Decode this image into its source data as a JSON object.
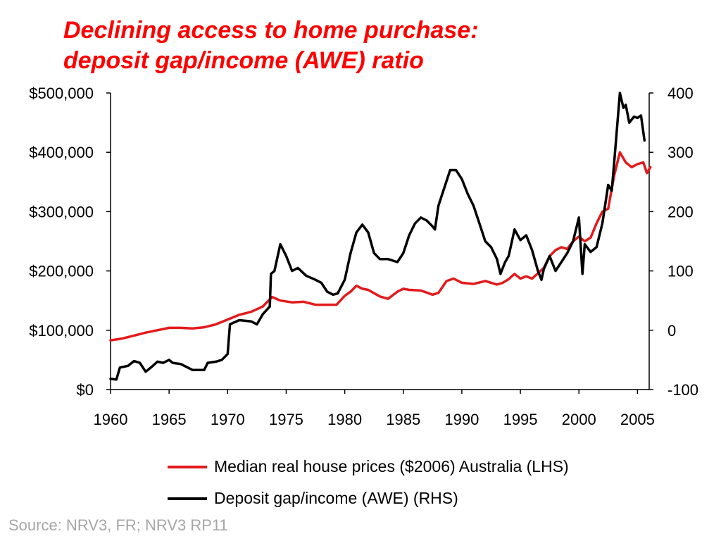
{
  "title_line1": "Declining access to home purchase:",
  "title_line2": "deposit gap/income (AWE) ratio",
  "source": "Source: NRV3, FR; NRV3 RP11",
  "colors": {
    "title": "#ff0000",
    "house_prices": "#e31a1c",
    "deposit_gap": "#000000",
    "source": "#a6a6a6"
  },
  "chart_data": {
    "type": "line",
    "x_ticks": [
      "1960",
      "1965",
      "1970",
      "1975",
      "1980",
      "1985",
      "1990",
      "1995",
      "2000",
      "2005"
    ],
    "xlim": [
      1960,
      2006
    ],
    "y_left": {
      "ticks": [
        "$0",
        "$100,000",
        "$200,000",
        "$300,000",
        "$400,000",
        "$500,000"
      ],
      "range": [
        0,
        500000
      ]
    },
    "y_right": {
      "ticks": [
        "-100",
        "0",
        "100",
        "200",
        "300",
        "400"
      ],
      "range": [
        -100,
        400
      ]
    },
    "grid": false,
    "legend_position": "bottom",
    "series": [
      {
        "name": "Median real house prices ($2006) Australia (LHS)",
        "axis": "left",
        "color": "#e31a1c",
        "points": [
          [
            1960,
            83000
          ],
          [
            1961,
            86000
          ],
          [
            1962,
            91000
          ],
          [
            1963,
            96000
          ],
          [
            1964,
            100000
          ],
          [
            1965,
            104000
          ],
          [
            1966,
            104000
          ],
          [
            1967,
            103000
          ],
          [
            1968,
            105000
          ],
          [
            1969,
            110000
          ],
          [
            1970,
            118000
          ],
          [
            1971,
            126000
          ],
          [
            1972,
            131000
          ],
          [
            1973,
            140000
          ],
          [
            1973.8,
            156000
          ],
          [
            1974.5,
            150000
          ],
          [
            1975.5,
            147000
          ],
          [
            1976.5,
            148000
          ],
          [
            1977.5,
            143000
          ],
          [
            1978.5,
            143000
          ],
          [
            1979.3,
            143000
          ],
          [
            1980,
            158000
          ],
          [
            1980.5,
            165000
          ],
          [
            1981,
            175000
          ],
          [
            1981.5,
            170000
          ],
          [
            1982,
            168000
          ],
          [
            1983,
            157000
          ],
          [
            1983.7,
            153000
          ],
          [
            1984.5,
            165000
          ],
          [
            1985,
            170000
          ],
          [
            1985.5,
            168000
          ],
          [
            1986.5,
            167000
          ],
          [
            1987.5,
            160000
          ],
          [
            1988,
            163000
          ],
          [
            1988.7,
            183000
          ],
          [
            1989.3,
            187000
          ],
          [
            1990,
            180000
          ],
          [
            1991,
            178000
          ],
          [
            1992,
            183000
          ],
          [
            1992.5,
            180000
          ],
          [
            1993,
            177000
          ],
          [
            1993.5,
            180000
          ],
          [
            1994,
            186000
          ],
          [
            1994.5,
            195000
          ],
          [
            1995,
            187000
          ],
          [
            1995.5,
            191000
          ],
          [
            1996,
            187000
          ],
          [
            1996.5,
            196000
          ],
          [
            1997,
            205000
          ],
          [
            1997.5,
            225000
          ],
          [
            1998,
            235000
          ],
          [
            1998.5,
            240000
          ],
          [
            1999,
            237000
          ],
          [
            1999.5,
            250000
          ],
          [
            2000,
            258000
          ],
          [
            2000.5,
            250000
          ],
          [
            2001,
            256000
          ],
          [
            2001.5,
            280000
          ],
          [
            2002,
            300000
          ],
          [
            2002.5,
            305000
          ],
          [
            2003,
            360000
          ],
          [
            2003.5,
            400000
          ],
          [
            2004,
            383000
          ],
          [
            2004.5,
            375000
          ],
          [
            2005,
            380000
          ],
          [
            2005.5,
            383000
          ],
          [
            2005.8,
            365000
          ],
          [
            2006.1,
            375000
          ]
        ]
      },
      {
        "name": "Deposit gap/income (AWE) (RHS)",
        "axis": "right",
        "color": "#000000",
        "points": [
          [
            1960,
            -82
          ],
          [
            1960.5,
            -83
          ],
          [
            1960.8,
            -63
          ],
          [
            1961.5,
            -60
          ],
          [
            1962,
            -52
          ],
          [
            1962.5,
            -55
          ],
          [
            1963,
            -70
          ],
          [
            1963.5,
            -62
          ],
          [
            1964,
            -53
          ],
          [
            1964.5,
            -55
          ],
          [
            1965,
            -50
          ],
          [
            1965.3,
            -55
          ],
          [
            1966,
            -57
          ],
          [
            1967,
            -67
          ],
          [
            1968,
            -67
          ],
          [
            1968.3,
            -55
          ],
          [
            1969,
            -53
          ],
          [
            1969.5,
            -50
          ],
          [
            1970,
            -40
          ],
          [
            1970.2,
            10
          ],
          [
            1971,
            17
          ],
          [
            1972,
            15
          ],
          [
            1972.5,
            10
          ],
          [
            1973,
            27
          ],
          [
            1973.6,
            40
          ],
          [
            1973.7,
            95
          ],
          [
            1974,
            100
          ],
          [
            1974.5,
            145
          ],
          [
            1975,
            125
          ],
          [
            1975.5,
            100
          ],
          [
            1976,
            105
          ],
          [
            1976.7,
            92
          ],
          [
            1977.5,
            85
          ],
          [
            1978,
            80
          ],
          [
            1978.5,
            65
          ],
          [
            1979,
            60
          ],
          [
            1979.4,
            62
          ],
          [
            1980,
            85
          ],
          [
            1980.5,
            130
          ],
          [
            1981,
            165
          ],
          [
            1981.5,
            178
          ],
          [
            1982,
            165
          ],
          [
            1982.5,
            130
          ],
          [
            1983,
            120
          ],
          [
            1983.7,
            120
          ],
          [
            1984.5,
            115
          ],
          [
            1985,
            130
          ],
          [
            1985.5,
            160
          ],
          [
            1986,
            180
          ],
          [
            1986.5,
            190
          ],
          [
            1987,
            185
          ],
          [
            1987.5,
            175
          ],
          [
            1987.7,
            170
          ],
          [
            1988,
            210
          ],
          [
            1988.5,
            240
          ],
          [
            1989,
            270
          ],
          [
            1989.5,
            270
          ],
          [
            1990,
            255
          ],
          [
            1990.5,
            230
          ],
          [
            1991,
            210
          ],
          [
            1991.5,
            180
          ],
          [
            1992,
            150
          ],
          [
            1992.5,
            140
          ],
          [
            1993,
            120
          ],
          [
            1993.3,
            95
          ],
          [
            1993.7,
            115
          ],
          [
            1994,
            125
          ],
          [
            1994.5,
            170
          ],
          [
            1995,
            152
          ],
          [
            1995.5,
            160
          ],
          [
            1996,
            135
          ],
          [
            1996.5,
            100
          ],
          [
            1996.8,
            85
          ],
          [
            1997,
            103
          ],
          [
            1997.5,
            125
          ],
          [
            1998,
            100
          ],
          [
            1998.5,
            115
          ],
          [
            1999,
            130
          ],
          [
            1999.5,
            150
          ],
          [
            2000,
            190
          ],
          [
            2000.3,
            95
          ],
          [
            2000.5,
            145
          ],
          [
            2001,
            132
          ],
          [
            2001.5,
            140
          ],
          [
            2002,
            180
          ],
          [
            2002.5,
            245
          ],
          [
            2002.8,
            235
          ],
          [
            2003,
            280
          ],
          [
            2003.5,
            400
          ],
          [
            2003.8,
            375
          ],
          [
            2004,
            380
          ],
          [
            2004.3,
            350
          ],
          [
            2004.7,
            360
          ],
          [
            2005,
            358
          ],
          [
            2005.3,
            362
          ],
          [
            2005.6,
            320
          ]
        ]
      }
    ]
  }
}
